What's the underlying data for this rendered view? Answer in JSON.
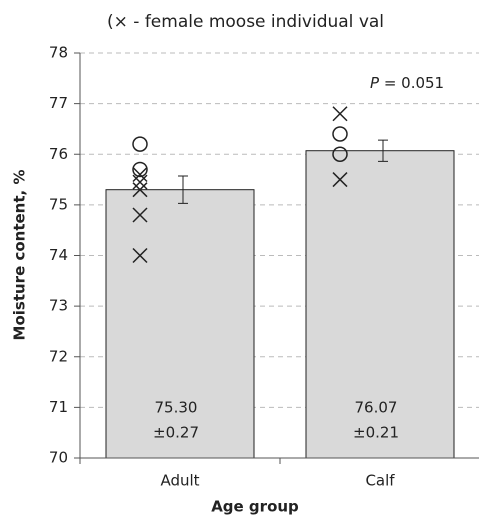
{
  "chart_data": {
    "type": "bar",
    "title": "(× - female moose individual val",
    "xlabel": "Age group",
    "ylabel": "Moisture content, %",
    "annotation": [
      "P",
      " = 0.051"
    ],
    "categories": [
      "Adult",
      "Calf"
    ],
    "values": [
      75.3,
      76.07
    ],
    "value_labels": [
      "75.30",
      "76.07"
    ],
    "errors": [
      0.27,
      0.21
    ],
    "error_labels": [
      "±0.27",
      "±0.21"
    ],
    "color": "#d9d9d9",
    "individuals": [
      {
        "marker": "x",
        "values": [
          [
            75.6,
            75.45,
            75.3,
            74.8,
            74.0
          ],
          [
            76.8,
            75.5
          ]
        ]
      },
      {
        "marker": "o",
        "values": [
          [
            76.2,
            75.7
          ],
          [
            76.4,
            76.0
          ]
        ]
      }
    ],
    "ylim": [
      70,
      78
    ],
    "yticks": [
      70,
      71,
      72,
      73,
      74,
      75,
      76,
      77,
      78
    ],
    "grid": true
  }
}
